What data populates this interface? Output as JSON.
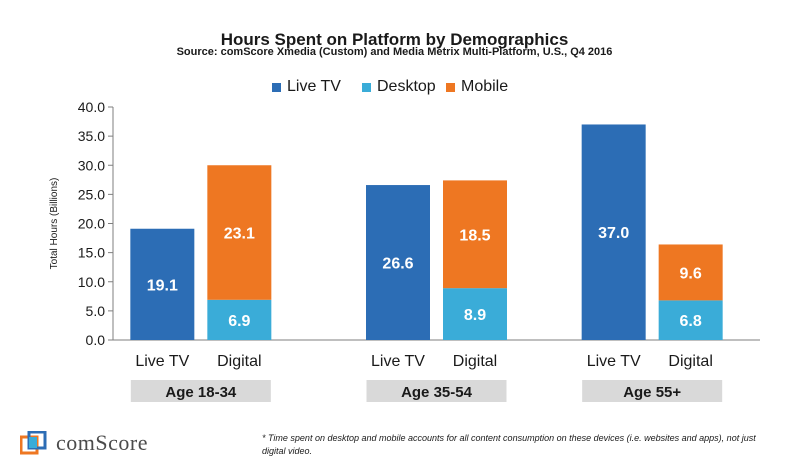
{
  "chart_data": {
    "type": "bar",
    "stacked": true,
    "title": "Hours Spent on Platform by Demographics",
    "subtitle": "Source: comScore Xmedia (Custom) and Media Metrix Multi-Platform, U.S., Q4 2016",
    "ylabel": "Total Hours (Billions)",
    "ylim": [
      0,
      40
    ],
    "yticks": [
      "0.0",
      "5.0",
      "10.0",
      "15.0",
      "20.0",
      "25.0",
      "30.0",
      "35.0",
      "40.0"
    ],
    "legend_position": "top",
    "series": [
      {
        "name": "Live TV",
        "color": "#2c6db5"
      },
      {
        "name": "Desktop",
        "color": "#3aacd8"
      },
      {
        "name": "Mobile",
        "color": "#ee7722"
      }
    ],
    "groups": [
      {
        "label": "Age 18-34",
        "bars": [
          {
            "label": "Live TV",
            "segments": [
              {
                "series": "Live TV",
                "value": 19.1,
                "text": "19.1"
              }
            ]
          },
          {
            "label": "Digital",
            "segments": [
              {
                "series": "Desktop",
                "value": 6.9,
                "text": "6.9"
              },
              {
                "series": "Mobile",
                "value": 23.1,
                "text": "23.1"
              }
            ]
          }
        ]
      },
      {
        "label": "Age 35-54",
        "bars": [
          {
            "label": "Live TV",
            "segments": [
              {
                "series": "Live TV",
                "value": 26.6,
                "text": "26.6"
              }
            ]
          },
          {
            "label": "Digital",
            "segments": [
              {
                "series": "Desktop",
                "value": 8.9,
                "text": "8.9"
              },
              {
                "series": "Mobile",
                "value": 18.5,
                "text": "18.5"
              }
            ]
          }
        ]
      },
      {
        "label": "Age 55+",
        "bars": [
          {
            "label": "Live TV",
            "segments": [
              {
                "series": "Live TV",
                "value": 37.0,
                "text": "37.0"
              }
            ]
          },
          {
            "label": "Digital",
            "segments": [
              {
                "series": "Desktop",
                "value": 6.8,
                "text": "6.8"
              },
              {
                "series": "Mobile",
                "value": 9.6,
                "text": "9.6"
              }
            ]
          }
        ]
      }
    ]
  },
  "logo": {
    "text": "comScore"
  },
  "footnote": "* Time spent on desktop and mobile accounts for all content consumption on these devices (i.e. websites and apps), not just digital video."
}
